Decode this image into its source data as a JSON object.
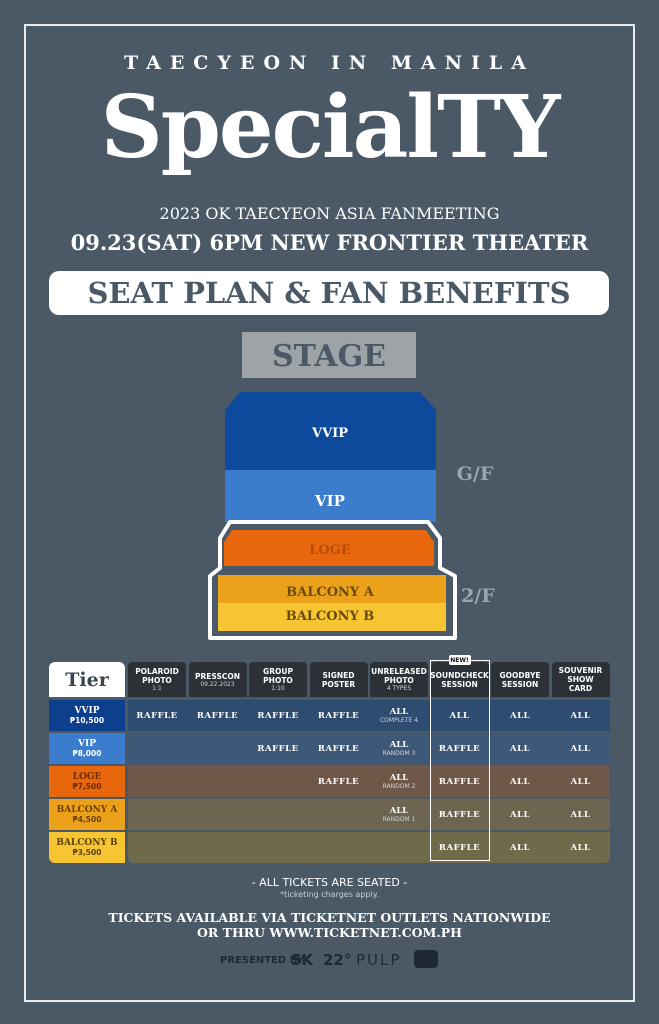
{
  "header": {
    "kicker": "TAECYEON IN MANILA",
    "title": "SpecialTY",
    "subtitle": "2023 OK TAECYEON ASIA FANMEETING",
    "date_venue": "09.23(SAT) 6PM NEW FRONTIER THEATER"
  },
  "banner": "SEAT PLAN & FAN BENEFITS",
  "seat_map": {
    "stage": "STAGE",
    "sections": [
      "VVIP",
      "VIP",
      "LOGE",
      "BALCONY A",
      "BALCONY B"
    ],
    "floors": [
      "G/F",
      "2/F"
    ]
  },
  "table": {
    "tier_header": "Tier",
    "new_badge": "NEW!",
    "columns": [
      {
        "title": "POLAROID PHOTO",
        "sub": "1:1"
      },
      {
        "title": "PRESSCON",
        "sub": "09.22.2023"
      },
      {
        "title": "GROUP PHOTO",
        "sub": "1:10"
      },
      {
        "title": "SIGNED POSTER"
      },
      {
        "title": "UNRELEASED PHOTO",
        "sub": "4 TYPES"
      },
      {
        "title": "SOUNDCHECK SESSION"
      },
      {
        "title": "GOODBYE SESSION"
      },
      {
        "title": "SOUVENIR SHOW CARD"
      }
    ],
    "rows": [
      {
        "tier": "VVIP",
        "price": "₱10,500",
        "cells": [
          "RAFFLE",
          "RAFFLE",
          "RAFFLE",
          "RAFFLE",
          {
            "text": "ALL",
            "sub": "COMPLETE 4"
          },
          "ALL",
          "ALL",
          "ALL"
        ]
      },
      {
        "tier": "VIP",
        "price": "₱8,000",
        "cells": [
          null,
          null,
          "RAFFLE",
          "RAFFLE",
          {
            "text": "ALL",
            "sub": "RANDOM 3"
          },
          "RAFFLE",
          "ALL",
          "ALL"
        ]
      },
      {
        "tier": "LOGE",
        "price": "₱7,500",
        "cells": [
          null,
          null,
          null,
          "RAFFLE",
          {
            "text": "ALL",
            "sub": "RANDOM 2"
          },
          "RAFFLE",
          "ALL",
          "ALL"
        ]
      },
      {
        "tier": "BALCONY A",
        "price": "₱4,500",
        "cells": [
          null,
          null,
          null,
          null,
          {
            "text": "ALL",
            "sub": "RANDOM 1"
          },
          "RAFFLE",
          "ALL",
          "ALL"
        ]
      },
      {
        "tier": "BALCONY B",
        "price": "₱3,500",
        "cells": [
          null,
          null,
          null,
          null,
          null,
          "RAFFLE",
          "ALL",
          "ALL"
        ]
      }
    ]
  },
  "footer": {
    "seated": "- ALL TICKETS ARE SEATED -",
    "charges": "*ticketing charges apply.",
    "availability": [
      "TICKETS AVAILABLE VIA TICKETNET OUTLETS NATIONWIDE",
      "OR THRU WWW.TICKETNET.COM.PH"
    ],
    "presented_by": "PRESENTED BY",
    "sponsors": [
      "5K",
      "22°",
      "PULP"
    ]
  }
}
